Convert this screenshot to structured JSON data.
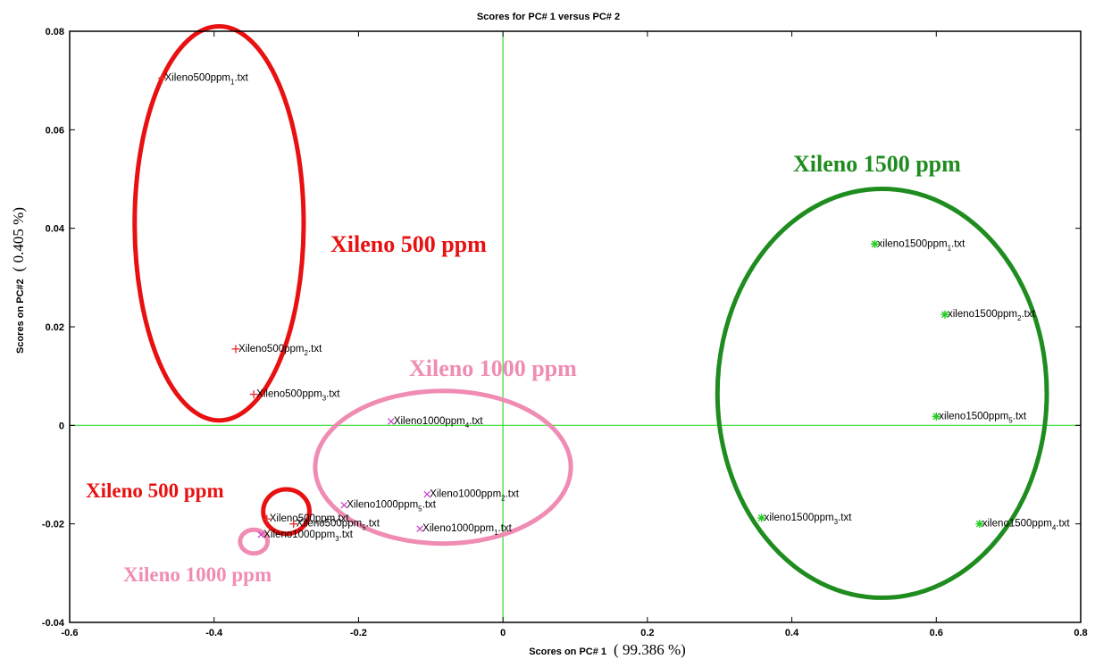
{
  "chart_data": {
    "type": "scatter",
    "title": "Scores for PC# 1 versus PC# 2",
    "xlabel": "Scores on PC# 1",
    "xlabel_pct": "( 99.386 %)",
    "ylabel": "Scores on PC#2",
    "ylabel_pct": "( 0.405 %)",
    "xlim": [
      -0.6,
      0.8
    ],
    "ylim": [
      -0.04,
      0.08
    ],
    "xticks": [
      "-0.6",
      "-0.4",
      "-0.2",
      "0",
      "0.2",
      "0.4",
      "0.6",
      "0.8"
    ],
    "yticks": [
      "-0.04",
      "-0.02",
      "0",
      "0.02",
      "0.04",
      "0.06",
      "0.08"
    ],
    "xtick_values": [
      -0.6,
      -0.4,
      -0.2,
      0,
      0.2,
      0.4,
      0.6,
      0.8
    ],
    "ytick_values": [
      -0.04,
      -0.02,
      0,
      0.02,
      0.04,
      0.06,
      0.08
    ],
    "zero_lines_color": "#33dd33",
    "series": [
      {
        "marker": "+",
        "color": "#e83030",
        "points": [
          {
            "x": -0.472,
            "y": 0.0705,
            "label": "Xileno500ppm",
            "sub": "1",
            "suffix": ".txt"
          },
          {
            "x": -0.37,
            "y": 0.0155,
            "label": "Xileno500ppm",
            "sub": "2",
            "suffix": ".txt"
          },
          {
            "x": -0.345,
            "y": 0.0063,
            "label": "Xileno500ppm",
            "sub": "3",
            "suffix": ".txt"
          },
          {
            "x": -0.327,
            "y": -0.019,
            "label": "Xileno500ppm",
            "sub": "",
            "suffix": ".txt"
          },
          {
            "x": -0.29,
            "y": -0.02,
            "label": "Xileno500ppm",
            "sub": "5",
            "suffix": ".txt"
          }
        ]
      },
      {
        "marker": "x",
        "color": "#cc44cc",
        "points": [
          {
            "x": -0.155,
            "y": 0.0008,
            "label": "Xileno1000ppm",
            "sub": "4",
            "suffix": ".txt"
          },
          {
            "x": -0.105,
            "y": -0.014,
            "label": "Xileno1000ppm",
            "sub": "2",
            "suffix": ".txt"
          },
          {
            "x": -0.22,
            "y": -0.0162,
            "label": "Xileno1000ppm",
            "sub": "5",
            "suffix": ".txt"
          },
          {
            "x": -0.115,
            "y": -0.021,
            "label": "Xileno1000ppm",
            "sub": "1",
            "suffix": ".txt"
          },
          {
            "x": -0.335,
            "y": -0.0222,
            "label": "Xileno1000ppm",
            "sub": "3",
            "suffix": ".txt"
          }
        ]
      },
      {
        "marker": "*",
        "color": "#22cc22",
        "points": [
          {
            "x": 0.515,
            "y": 0.0368,
            "label": "xileno1500ppm",
            "sub": "1",
            "suffix": ".txt"
          },
          {
            "x": 0.612,
            "y": 0.0225,
            "label": "xileno1500ppm",
            "sub": "2",
            "suffix": ".txt"
          },
          {
            "x": 0.6,
            "y": 0.0018,
            "label": "xileno1500ppm",
            "sub": "5",
            "suffix": ".txt"
          },
          {
            "x": 0.358,
            "y": -0.0188,
            "label": "xileno1500ppm",
            "sub": "3",
            "suffix": ".txt"
          },
          {
            "x": 0.66,
            "y": -0.02,
            "label": "xileno1500ppm",
            "sub": "4",
            "suffix": ".txt"
          }
        ]
      }
    ],
    "annotations": [
      {
        "text": "Xileno 1500 ppm",
        "color": "#1e8c1e"
      },
      {
        "text": "Xileno 500 ppm",
        "color": "#e81010"
      },
      {
        "text": "Xileno 1000 ppm",
        "color": "#f08cb4"
      },
      {
        "text": "Xileno 500 ppm",
        "color": "#e81010"
      },
      {
        "text": "Xileno 1000 ppm",
        "color": "#f08cb4"
      }
    ],
    "group_ellipses": [
      {
        "cx": 0.525,
        "cy": 0.0065,
        "rx": 0.228,
        "ry": 0.0415,
        "color": "#1e8c1e"
      },
      {
        "cx": -0.393,
        "cy": 0.041,
        "rx": 0.117,
        "ry": 0.04,
        "color": "#e81010"
      },
      {
        "cx": -0.083,
        "cy": -0.0085,
        "rx": 0.177,
        "ry": 0.0155,
        "color": "#f08cb4"
      },
      {
        "cx": -0.3,
        "cy": -0.0175,
        "rx": 0.032,
        "ry": 0.0045,
        "color": "#e81010"
      },
      {
        "cx": -0.345,
        "cy": -0.0236,
        "rx": 0.019,
        "ry": 0.0024,
        "color": "#f08cb4"
      }
    ]
  }
}
